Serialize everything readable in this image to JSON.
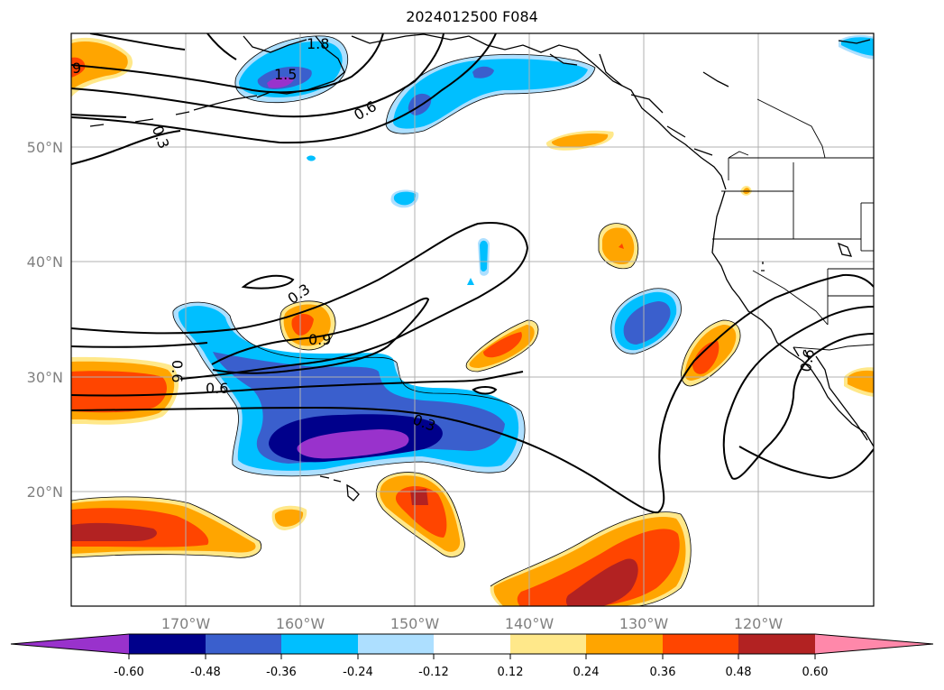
{
  "title": "2024012500 F084",
  "latitude_labels": [
    "50°N",
    "40°N",
    "30°N",
    "20°N"
  ],
  "longitude_labels": [
    "170°W",
    "160°W",
    "150°W",
    "140°W",
    "130°W",
    "120°W"
  ],
  "contour_labels": [
    "9",
    "0.3",
    "1.8",
    "1.5",
    "0.6",
    "0.3",
    "0.9",
    "0.6",
    "0.6",
    "0.3",
    "0.6"
  ],
  "colorbar": {
    "tick_labels": [
      "-0.60",
      "-0.48",
      "-0.36",
      "-0.24",
      "-0.12",
      "0.12",
      "0.24",
      "0.36",
      "0.48",
      "0.60"
    ],
    "colors": [
      "#9932CC",
      "#00008B",
      "#3A5FCD",
      "#00BFFF",
      "#ADDFFF",
      "#FFFFFF",
      "#FFE88A",
      "#FFA500",
      "#FF4500",
      "#B22222",
      "#FF88AA"
    ]
  }
}
